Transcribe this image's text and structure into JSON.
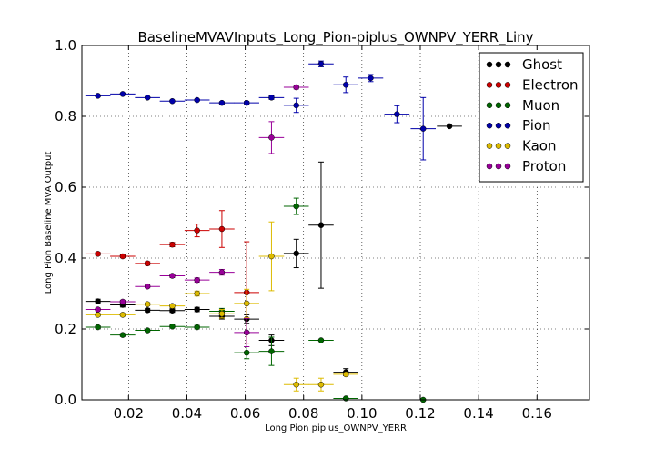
{
  "chart_data": {
    "type": "scatter",
    "title": "BaselineMVAVInputs_Long_Pion-piplus_OWNPV_YERR_Liny",
    "xlabel": "Long Pion piplus_OWNPV_YERR",
    "ylabel": "Long Pion Baseline MVA Output",
    "xlim": [
      0.004,
      0.178
    ],
    "ylim": [
      0.0,
      1.0
    ],
    "xticks": [
      "0.02",
      "0.04",
      "0.06",
      "0.08",
      "0.10",
      "0.12",
      "0.14",
      "0.16"
    ],
    "yticks": [
      "0.0",
      "0.2",
      "0.4",
      "0.6",
      "0.8",
      "1.0"
    ],
    "xtick_values": [
      0.02,
      0.04,
      0.06,
      0.08,
      0.1,
      0.12,
      0.14,
      0.16
    ],
    "ytick_values": [
      0.0,
      0.2,
      0.4,
      0.6,
      0.8,
      1.0
    ],
    "grid": true,
    "legend_position": "top-right",
    "series": [
      {
        "name": "Ghost",
        "color": "#000000",
        "points": [
          {
            "x": 0.0095,
            "y": 0.278,
            "xerr": 0.0043,
            "yerr": 0.006
          },
          {
            "x": 0.018,
            "y": 0.268,
            "xerr": 0.0043,
            "yerr": 0.006
          },
          {
            "x": 0.0265,
            "y": 0.253,
            "xerr": 0.0043,
            "yerr": 0.005
          },
          {
            "x": 0.035,
            "y": 0.252,
            "xerr": 0.0043,
            "yerr": 0.005
          },
          {
            "x": 0.0435,
            "y": 0.255,
            "xerr": 0.0043,
            "yerr": 0.006
          },
          {
            "x": 0.052,
            "y": 0.236,
            "xerr": 0.0043,
            "yerr": 0.008
          },
          {
            "x": 0.0605,
            "y": 0.228,
            "xerr": 0.0043,
            "yerr": 0.012
          },
          {
            "x": 0.069,
            "y": 0.168,
            "xerr": 0.0043,
            "yerr": 0.015
          },
          {
            "x": 0.0775,
            "y": 0.413,
            "xerr": 0.0043,
            "yerr": 0.04
          },
          {
            "x": 0.086,
            "y": 0.493,
            "xerr": 0.0043,
            "yerr": 0.178
          },
          {
            "x": 0.0945,
            "y": 0.078,
            "xerr": 0.0043,
            "yerr": 0.01
          },
          {
            "x": 0.13,
            "y": 0.772,
            "xerr": 0.0043,
            "yerr": 0.0
          }
        ]
      },
      {
        "name": "Electron",
        "color": "#cc0000",
        "points": [
          {
            "x": 0.0095,
            "y": 0.412,
            "xerr": 0.0043,
            "yerr": 0.004
          },
          {
            "x": 0.018,
            "y": 0.405,
            "xerr": 0.0043,
            "yerr": 0.004
          },
          {
            "x": 0.0265,
            "y": 0.385,
            "xerr": 0.0043,
            "yerr": 0.005
          },
          {
            "x": 0.035,
            "y": 0.438,
            "xerr": 0.0043,
            "yerr": 0.006
          },
          {
            "x": 0.0435,
            "y": 0.478,
            "xerr": 0.0043,
            "yerr": 0.018
          },
          {
            "x": 0.052,
            "y": 0.482,
            "xerr": 0.0043,
            "yerr": 0.052
          },
          {
            "x": 0.0605,
            "y": 0.303,
            "xerr": 0.0043,
            "yerr": 0.143
          }
        ]
      },
      {
        "name": "Muon",
        "color": "#006600",
        "points": [
          {
            "x": 0.0095,
            "y": 0.205,
            "xerr": 0.0043,
            "yerr": 0.004
          },
          {
            "x": 0.018,
            "y": 0.183,
            "xerr": 0.0043,
            "yerr": 0.004
          },
          {
            "x": 0.0265,
            "y": 0.196,
            "xerr": 0.0043,
            "yerr": 0.004
          },
          {
            "x": 0.035,
            "y": 0.207,
            "xerr": 0.0043,
            "yerr": 0.004
          },
          {
            "x": 0.0435,
            "y": 0.205,
            "xerr": 0.0043,
            "yerr": 0.005
          },
          {
            "x": 0.052,
            "y": 0.25,
            "xerr": 0.0043,
            "yerr": 0.008
          },
          {
            "x": 0.0605,
            "y": 0.133,
            "xerr": 0.0043,
            "yerr": 0.017
          },
          {
            "x": 0.069,
            "y": 0.137,
            "xerr": 0.0043,
            "yerr": 0.04
          },
          {
            "x": 0.0775,
            "y": 0.546,
            "xerr": 0.0043,
            "yerr": 0.023
          },
          {
            "x": 0.086,
            "y": 0.168,
            "xerr": 0.0043,
            "yerr": 0.0
          },
          {
            "x": 0.0945,
            "y": 0.004,
            "xerr": 0.0043,
            "yerr": 0.0
          },
          {
            "x": 0.121,
            "y": 0.0,
            "xerr": 0.0,
            "yerr": 0.0
          }
        ]
      },
      {
        "name": "Pion",
        "color": "#0000aa",
        "points": [
          {
            "x": 0.0095,
            "y": 0.858,
            "xerr": 0.0043,
            "yerr": 0.002
          },
          {
            "x": 0.018,
            "y": 0.863,
            "xerr": 0.0043,
            "yerr": 0.002
          },
          {
            "x": 0.0265,
            "y": 0.853,
            "xerr": 0.0043,
            "yerr": 0.002
          },
          {
            "x": 0.035,
            "y": 0.843,
            "xerr": 0.0043,
            "yerr": 0.002
          },
          {
            "x": 0.0435,
            "y": 0.846,
            "xerr": 0.0043,
            "yerr": 0.002
          },
          {
            "x": 0.052,
            "y": 0.838,
            "xerr": 0.0043,
            "yerr": 0.003
          },
          {
            "x": 0.0605,
            "y": 0.838,
            "xerr": 0.0043,
            "yerr": 0.004
          },
          {
            "x": 0.069,
            "y": 0.853,
            "xerr": 0.0043,
            "yerr": 0.005
          },
          {
            "x": 0.0775,
            "y": 0.831,
            "xerr": 0.0043,
            "yerr": 0.02
          },
          {
            "x": 0.086,
            "y": 0.948,
            "xerr": 0.0043,
            "yerr": 0.008
          },
          {
            "x": 0.0945,
            "y": 0.889,
            "xerr": 0.0043,
            "yerr": 0.022
          },
          {
            "x": 0.103,
            "y": 0.908,
            "xerr": 0.0043,
            "yerr": 0.01
          },
          {
            "x": 0.112,
            "y": 0.806,
            "xerr": 0.0043,
            "yerr": 0.024
          },
          {
            "x": 0.121,
            "y": 0.765,
            "xerr": 0.0043,
            "yerr": 0.088
          }
        ]
      },
      {
        "name": "Kaon",
        "color": "#ddbb00",
        "points": [
          {
            "x": 0.0095,
            "y": 0.24,
            "xerr": 0.0043,
            "yerr": 0.004
          },
          {
            "x": 0.018,
            "y": 0.24,
            "xerr": 0.0043,
            "yerr": 0.004
          },
          {
            "x": 0.0265,
            "y": 0.27,
            "xerr": 0.0043,
            "yerr": 0.004
          },
          {
            "x": 0.035,
            "y": 0.265,
            "xerr": 0.0043,
            "yerr": 0.005
          },
          {
            "x": 0.0435,
            "y": 0.3,
            "xerr": 0.0043,
            "yerr": 0.007
          },
          {
            "x": 0.052,
            "y": 0.243,
            "xerr": 0.0043,
            "yerr": 0.012
          },
          {
            "x": 0.0605,
            "y": 0.272,
            "xerr": 0.0043,
            "yerr": 0.04
          },
          {
            "x": 0.069,
            "y": 0.405,
            "xerr": 0.0043,
            "yerr": 0.097
          },
          {
            "x": 0.0775,
            "y": 0.043,
            "xerr": 0.0043,
            "yerr": 0.018
          },
          {
            "x": 0.086,
            "y": 0.043,
            "xerr": 0.0043,
            "yerr": 0.018
          },
          {
            "x": 0.0945,
            "y": 0.072,
            "xerr": 0.0043,
            "yerr": 0.0
          }
        ]
      },
      {
        "name": "Proton",
        "color": "#990099",
        "points": [
          {
            "x": 0.0095,
            "y": 0.255,
            "xerr": 0.0043,
            "yerr": 0.004
          },
          {
            "x": 0.018,
            "y": 0.277,
            "xerr": 0.0043,
            "yerr": 0.004
          },
          {
            "x": 0.0265,
            "y": 0.32,
            "xerr": 0.0043,
            "yerr": 0.004
          },
          {
            "x": 0.035,
            "y": 0.35,
            "xerr": 0.0043,
            "yerr": 0.005
          },
          {
            "x": 0.0435,
            "y": 0.338,
            "xerr": 0.0043,
            "yerr": 0.006
          },
          {
            "x": 0.052,
            "y": 0.36,
            "xerr": 0.0043,
            "yerr": 0.008
          },
          {
            "x": 0.0605,
            "y": 0.19,
            "xerr": 0.0043,
            "yerr": 0.04
          },
          {
            "x": 0.069,
            "y": 0.74,
            "xerr": 0.0043,
            "yerr": 0.045
          },
          {
            "x": 0.0775,
            "y": 0.882,
            "xerr": 0.0043,
            "yerr": 0.005
          }
        ]
      }
    ]
  }
}
